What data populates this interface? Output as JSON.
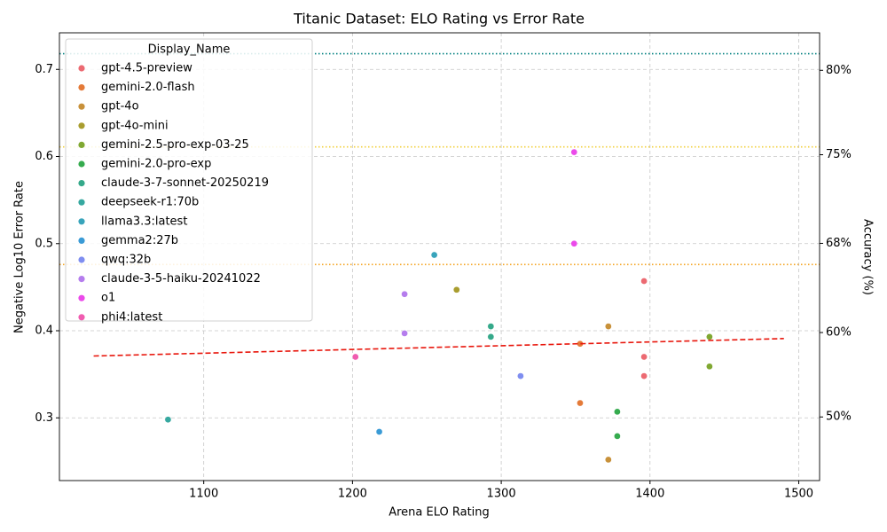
{
  "chart_data": {
    "type": "scatter",
    "title": "Titanic Dataset: ELO Rating vs Error Rate",
    "x_label": "Arena ELO Rating",
    "y_label": "Negative Log10 Error Rate",
    "y2_label": "Accuracy (%)",
    "legend_title": "Display_Name",
    "legend": "upper left",
    "grid": true,
    "xlim": [
      1003,
      1514
    ],
    "ylim": [
      0.228,
      0.742
    ],
    "xticks": [
      1100,
      1200,
      1300,
      1400,
      1500
    ],
    "yticks": [
      0.3,
      0.4,
      0.5,
      0.6,
      0.7
    ],
    "y2scale": "neg-log10-error",
    "y2ticks": [
      {
        "value": 50,
        "label": "50%"
      },
      {
        "value": 60,
        "label": "60%"
      },
      {
        "value": 68.4,
        "label": "68%"
      },
      {
        "value": 75,
        "label": "75%"
      },
      {
        "value": 80,
        "label": "80%"
      }
    ],
    "reference_lines": [
      {
        "value": 0.718,
        "color": "#008080"
      },
      {
        "value": 0.611,
        "color": "#f2d03b"
      },
      {
        "value": 0.476,
        "color": "#f5a623"
      }
    ],
    "trend": {
      "x": [
        1026,
        1490
      ],
      "y": [
        0.371,
        0.391
      ],
      "color": "#e8160c"
    },
    "series": [
      {
        "name": "gpt-4.5-preview",
        "color": "#ec6a72",
        "x": [
          1396,
          1396,
          1396
        ],
        "values": [
          0.457,
          0.37,
          0.348
        ]
      },
      {
        "name": "gemini-2.0-flash",
        "color": "#e47a38",
        "x": [
          1353,
          1353
        ],
        "values": [
          0.385,
          0.317
        ]
      },
      {
        "name": "gpt-4o",
        "color": "#c8913a",
        "x": [
          1372,
          1372
        ],
        "values": [
          0.405,
          0.252
        ]
      },
      {
        "name": "gpt-4o-mini",
        "color": "#a99d2f",
        "x": [
          1270
        ],
        "values": [
          0.447
        ]
      },
      {
        "name": "gemini-2.5-pro-exp-03-25",
        "color": "#80a832",
        "x": [
          1440,
          1440
        ],
        "values": [
          0.393,
          0.359
        ]
      },
      {
        "name": "gemini-2.0-pro-exp",
        "color": "#35ab4e",
        "x": [
          1378,
          1378
        ],
        "values": [
          0.307,
          0.279
        ]
      },
      {
        "name": "claude-3-7-sonnet-20250219",
        "color": "#35a98a",
        "x": [
          1293,
          1293
        ],
        "values": [
          0.405,
          0.393
        ]
      },
      {
        "name": "deepseek-r1:70b",
        "color": "#36a8a0",
        "x": [
          1076
        ],
        "values": [
          0.298
        ]
      },
      {
        "name": "llama3.3:latest",
        "color": "#38a4bb",
        "x": [
          1255
        ],
        "values": [
          0.487
        ]
      },
      {
        "name": "gemma2:27b",
        "color": "#3a9bd6",
        "x": [
          1218
        ],
        "values": [
          0.284
        ]
      },
      {
        "name": "qwq:32b",
        "color": "#7f8ef0",
        "x": [
          1313
        ],
        "values": [
          0.348
        ]
      },
      {
        "name": "claude-3-5-haiku-20241022",
        "color": "#b57ded",
        "x": [
          1235,
          1235
        ],
        "values": [
          0.442,
          0.397
        ]
      },
      {
        "name": "o1",
        "color": "#eb4aea",
        "x": [
          1349,
          1349
        ],
        "values": [
          0.605,
          0.5
        ]
      },
      {
        "name": "phi4:latest",
        "color": "#f05cb0",
        "x": [
          1202
        ],
        "values": [
          0.37
        ]
      }
    ]
  }
}
